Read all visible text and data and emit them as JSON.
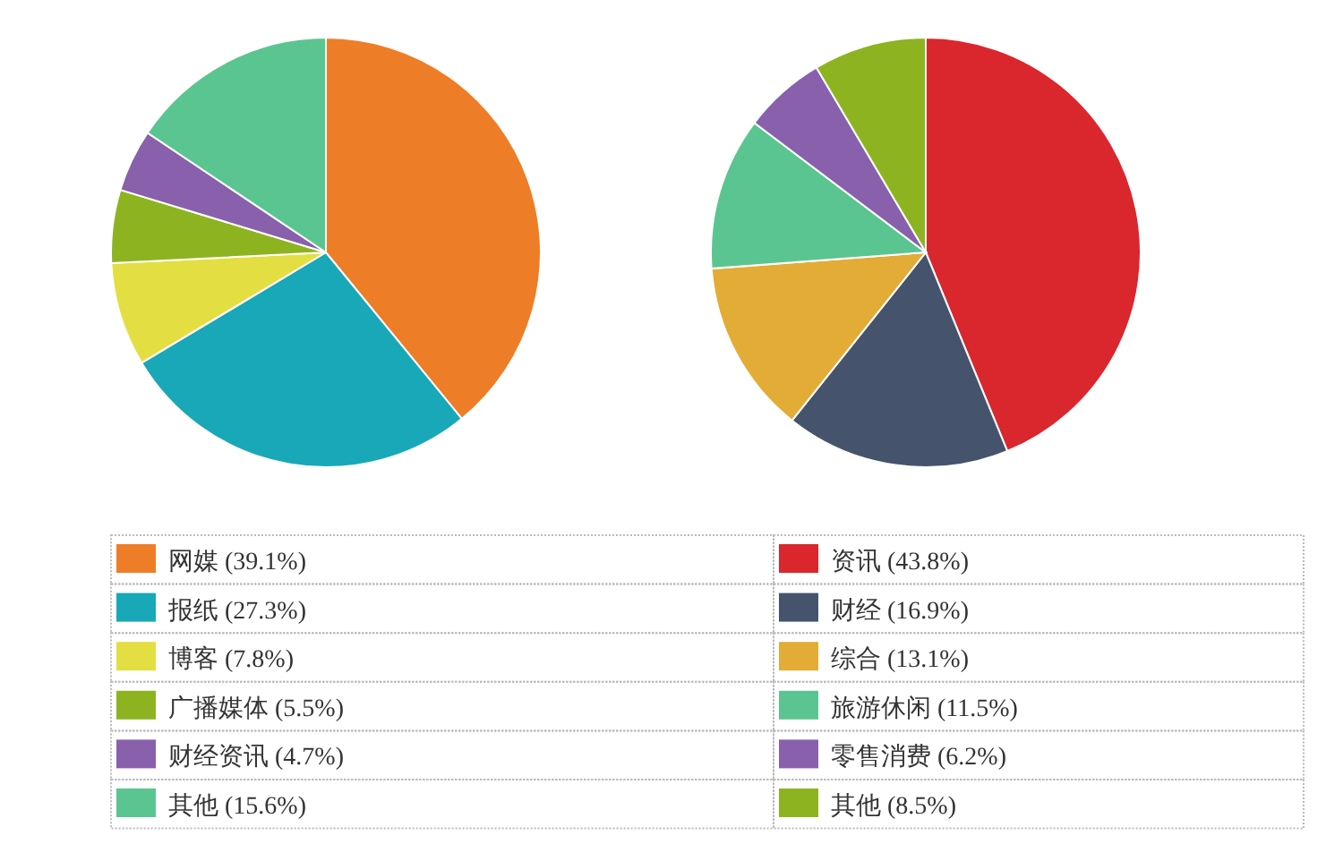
{
  "chart_data": [
    {
      "type": "pie",
      "categories": [
        "网媒",
        "报纸",
        "博客",
        "广播媒体",
        "财经资讯",
        "其他"
      ],
      "values": [
        39.1,
        27.3,
        7.8,
        5.5,
        4.7,
        15.6
      ],
      "value_labels": [
        "(39.1%)",
        "(27.3%)",
        "(7.8%)",
        "(5.5%)",
        "(4.7%)",
        "(15.6%)"
      ],
      "colors": [
        "#ee7d27",
        "#18a8b8",
        "#e3df42",
        "#8db420",
        "#8960ac",
        "#5bc591"
      ],
      "legend": "bottom"
    },
    {
      "type": "pie",
      "categories": [
        "资讯",
        "财经",
        "综合",
        "旅游休闲",
        "零售消费",
        "其他"
      ],
      "values": [
        43.8,
        16.9,
        13.1,
        11.5,
        6.2,
        8.5
      ],
      "value_labels": [
        "(43.8%)",
        "(16.9%)",
        "(13.1%)",
        "(11.5%)",
        "(6.2%)",
        "(8.5%)"
      ],
      "colors": [
        "#d9272d",
        "#46536c",
        "#e3ac36",
        "#5bc591",
        "#8960ac",
        "#8db420"
      ],
      "legend": "bottom"
    }
  ]
}
